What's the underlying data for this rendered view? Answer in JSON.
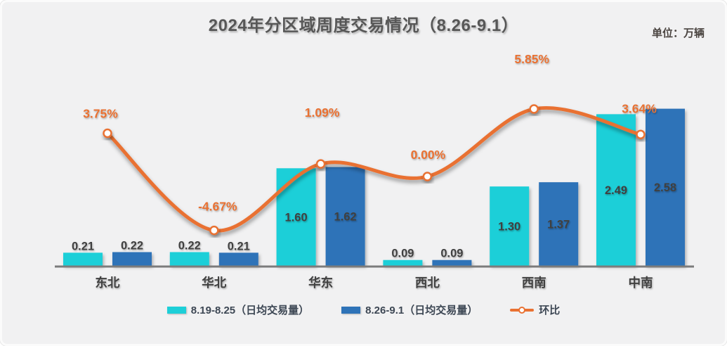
{
  "chart_data": {
    "type": "bar+line",
    "title": "2024年分区域周度交易情况（8.26-9.1）",
    "unit": "单位：万辆",
    "categories": [
      "东北",
      "华北",
      "华东",
      "西北",
      "西南",
      "中南"
    ],
    "series": [
      {
        "name": "8.19-8.25（日均交易量）",
        "type": "bar",
        "color": "#1DCFD8",
        "values": [
          0.21,
          0.22,
          1.6,
          0.09,
          1.3,
          2.49
        ]
      },
      {
        "name": "8.26-9.1（日均交易量）",
        "type": "bar",
        "color": "#2E73B8",
        "values": [
          0.22,
          0.21,
          1.62,
          0.09,
          1.37,
          2.58
        ]
      },
      {
        "name": "环比",
        "type": "line",
        "axis": "secondary",
        "color": "#E97132",
        "marker": "circle-white-fill",
        "values_pct": [
          3.75,
          -4.67,
          1.09,
          0.0,
          5.85,
          3.64
        ],
        "point_labels": [
          "3.75%",
          "-4.67%",
          "1.09%",
          "0.00%",
          "5.85%",
          "3.64%"
        ]
      }
    ],
    "value_axis": {
      "visible": false,
      "min": 0
    },
    "grid": false,
    "legend_position": "bottom",
    "colors": {
      "background": "#F1F1F2",
      "axis_line": "#7C7C7C",
      "value_label_text": "#3F3F3F",
      "category_label_text": "#3F3F3F",
      "percent_label_text": "#E97132",
      "title_text": "#575757",
      "legend_text": "#3D4754"
    }
  }
}
